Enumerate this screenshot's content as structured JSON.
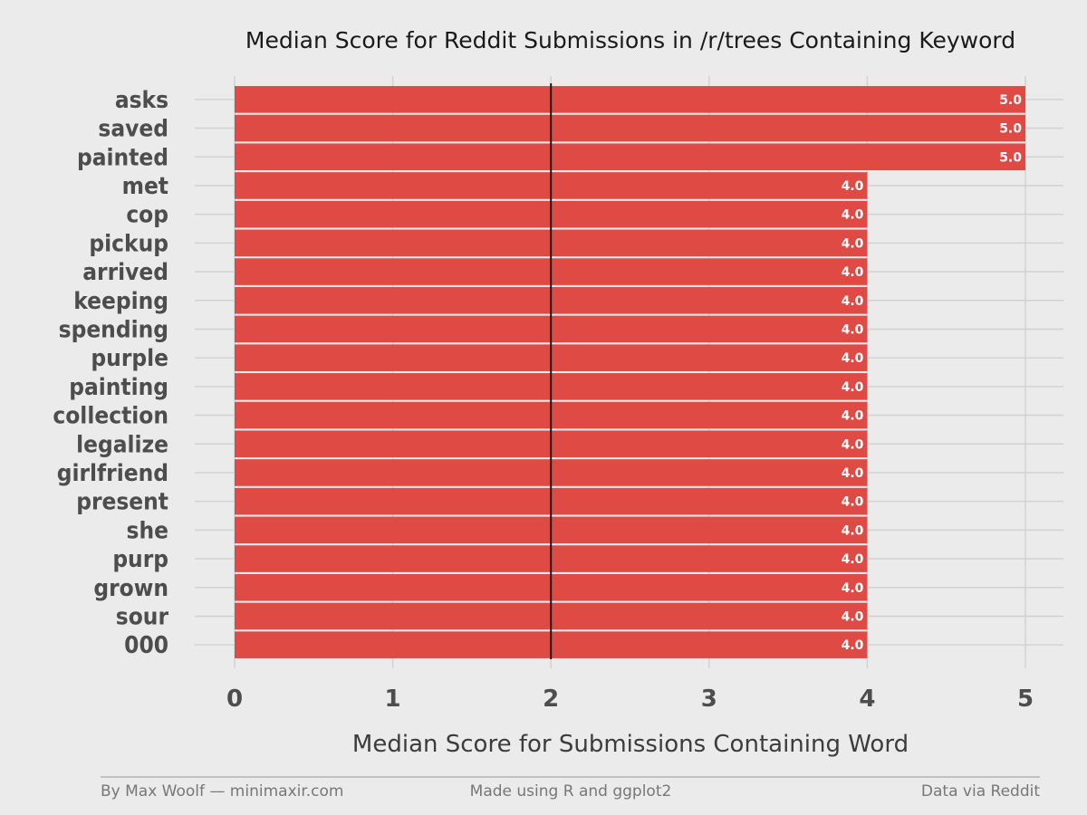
{
  "chart_data": {
    "type": "bar",
    "orientation": "horizontal",
    "title": "Median Score for Reddit Submissions in /r/trees Containing Keyword",
    "xlabel": "Median Score for Submissions Containing Word",
    "ylabel": "",
    "xlim": [
      0,
      5
    ],
    "x_ticks": [
      "0",
      "1",
      "2",
      "3",
      "4",
      "5"
    ],
    "reference_line": 2,
    "grid": true,
    "bar_color": "#e04a44",
    "categories": [
      "asks",
      "saved",
      "painted",
      "met",
      "cop",
      "pickup",
      "arrived",
      "keeping",
      "spending",
      "purple",
      "painting",
      "collection",
      "legalize",
      "girlfriend",
      "present",
      "she",
      "purp",
      "grown",
      "sour",
      "000"
    ],
    "values": [
      5,
      5,
      5,
      4,
      4,
      4,
      4,
      4,
      4,
      4,
      4,
      4,
      4,
      4,
      4,
      4,
      4,
      4,
      4,
      4
    ],
    "data_labels": [
      "5.0",
      "5.0",
      "5.0",
      "4.0",
      "4.0",
      "4.0",
      "4.0",
      "4.0",
      "4.0",
      "4.0",
      "4.0",
      "4.0",
      "4.0",
      "4.0",
      "4.0",
      "4.0",
      "4.0",
      "4.0",
      "4.0",
      "4.0"
    ]
  },
  "footer": {
    "left": "By Max Woolf — minimaxir.com",
    "center": "Made using R and ggplot2",
    "right": "Data via Reddit"
  }
}
